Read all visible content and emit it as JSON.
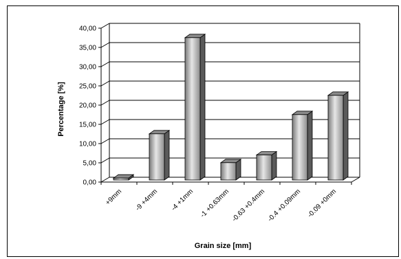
{
  "chart_data": {
    "type": "bar",
    "title": "",
    "xlabel": "Grain size [mm]",
    "ylabel": "Percentage [%]",
    "ylim": [
      0,
      40
    ],
    "ytick_labels": [
      "0,00",
      "5,00",
      "10,00",
      "15,00",
      "20,00",
      "25,00",
      "30,00",
      "35,00",
      "40,00"
    ],
    "categories": [
      "+9mm",
      "-9 +4mm",
      "-4 +1mm",
      "-1 +0.63mm",
      "-0.63 +0.4mm",
      "-0.4 +0.09mm",
      "-0.09 +0mm"
    ],
    "values": [
      0.5,
      12.0,
      37.0,
      4.5,
      6.5,
      17.0,
      22.0
    ],
    "grid": true,
    "legend": "none",
    "colors": {
      "bar_light": "#e2e2e2",
      "bar_mid": "#a8a8a8",
      "bar_dark": "#5a5a5a",
      "bar_top": "#8a8a8a",
      "grid": "#000000"
    }
  }
}
